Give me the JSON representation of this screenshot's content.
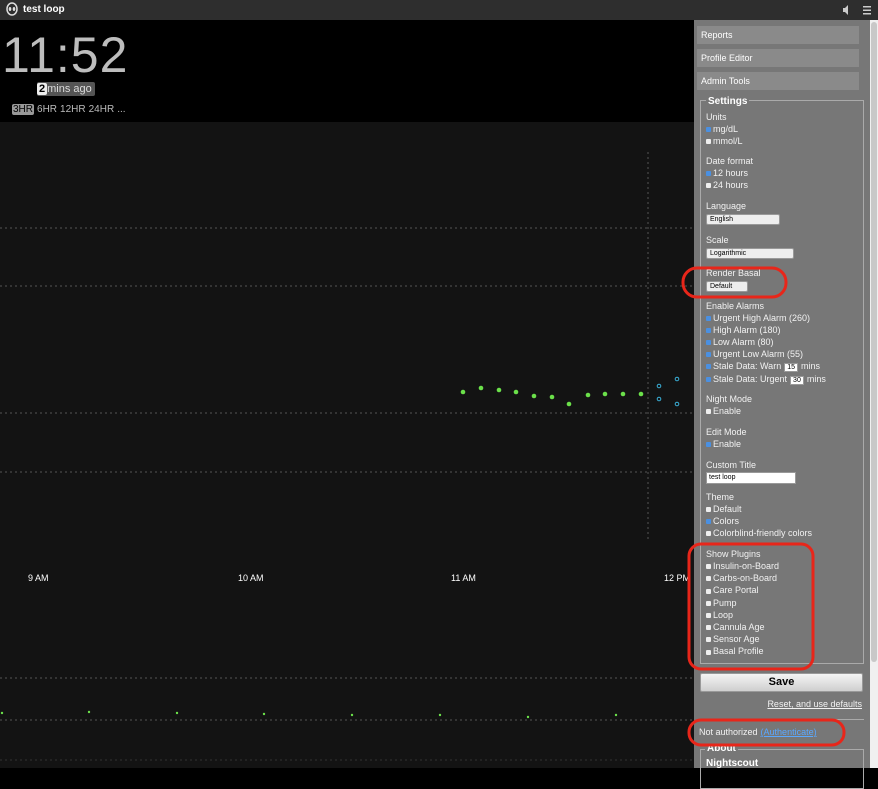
{
  "header": {
    "title": "test loop"
  },
  "clock": {
    "time": "11:52",
    "ago_number": "2",
    "ago_text": "mins ago",
    "ranges": [
      "3HR",
      "6HR",
      "12HR",
      "24HR",
      "..."
    ],
    "active_range": 0
  },
  "chart": {
    "x_labels": [
      "9 AM",
      "10 AM",
      "11 AM",
      "12 PM"
    ]
  },
  "menu": {
    "buttons": [
      "Reports",
      "Profile Editor",
      "Admin Tools"
    ]
  },
  "settings": {
    "legend": "Settings",
    "units": {
      "label": "Units",
      "options": [
        "mg/dL",
        "mmol/L"
      ],
      "selected": 0
    },
    "date_format": {
      "label": "Date format",
      "options": [
        "12 hours",
        "24 hours"
      ],
      "selected": 0
    },
    "language": {
      "label": "Language",
      "select": "English"
    },
    "scale": {
      "label": "Scale",
      "select": "Logarithmic"
    },
    "render_basal": {
      "label": "Render Basal",
      "select": "Default"
    },
    "alarms": {
      "label": "Enable Alarms",
      "items": [
        "Urgent High Alarm (260)",
        "High Alarm (180)",
        "Low Alarm (80)",
        "Urgent Low Alarm (55)"
      ],
      "stale_warn": {
        "label": "Stale Data: Warn",
        "value": "15",
        "unit": "mins"
      },
      "stale_urgent": {
        "label": "Stale Data: Urgent",
        "value": "30",
        "unit": "mins"
      },
      "checked": true
    },
    "night_mode": {
      "label": "Night Mode",
      "option": "Enable",
      "checked": false
    },
    "edit_mode": {
      "label": "Edit Mode",
      "option": "Enable",
      "checked": true
    },
    "custom_title": {
      "label": "Custom Title",
      "value": "test loop"
    },
    "theme": {
      "label": "Theme",
      "options": [
        "Default",
        "Colors",
        "Colorblind-friendly colors"
      ],
      "selected": 1
    },
    "plugins": {
      "label": "Show Plugins",
      "options": [
        "Insulin-on-Board",
        "Carbs-on-Board",
        "Care Portal",
        "Pump",
        "Loop",
        "Cannula Age",
        "Sensor Age",
        "Basal Profile"
      ]
    },
    "save": "Save",
    "reset": "Reset, and use defaults"
  },
  "auth": {
    "text": "Not authorized",
    "link": "(Authenticate)"
  },
  "about": {
    "legend": "About",
    "name": "Nightscout"
  }
}
